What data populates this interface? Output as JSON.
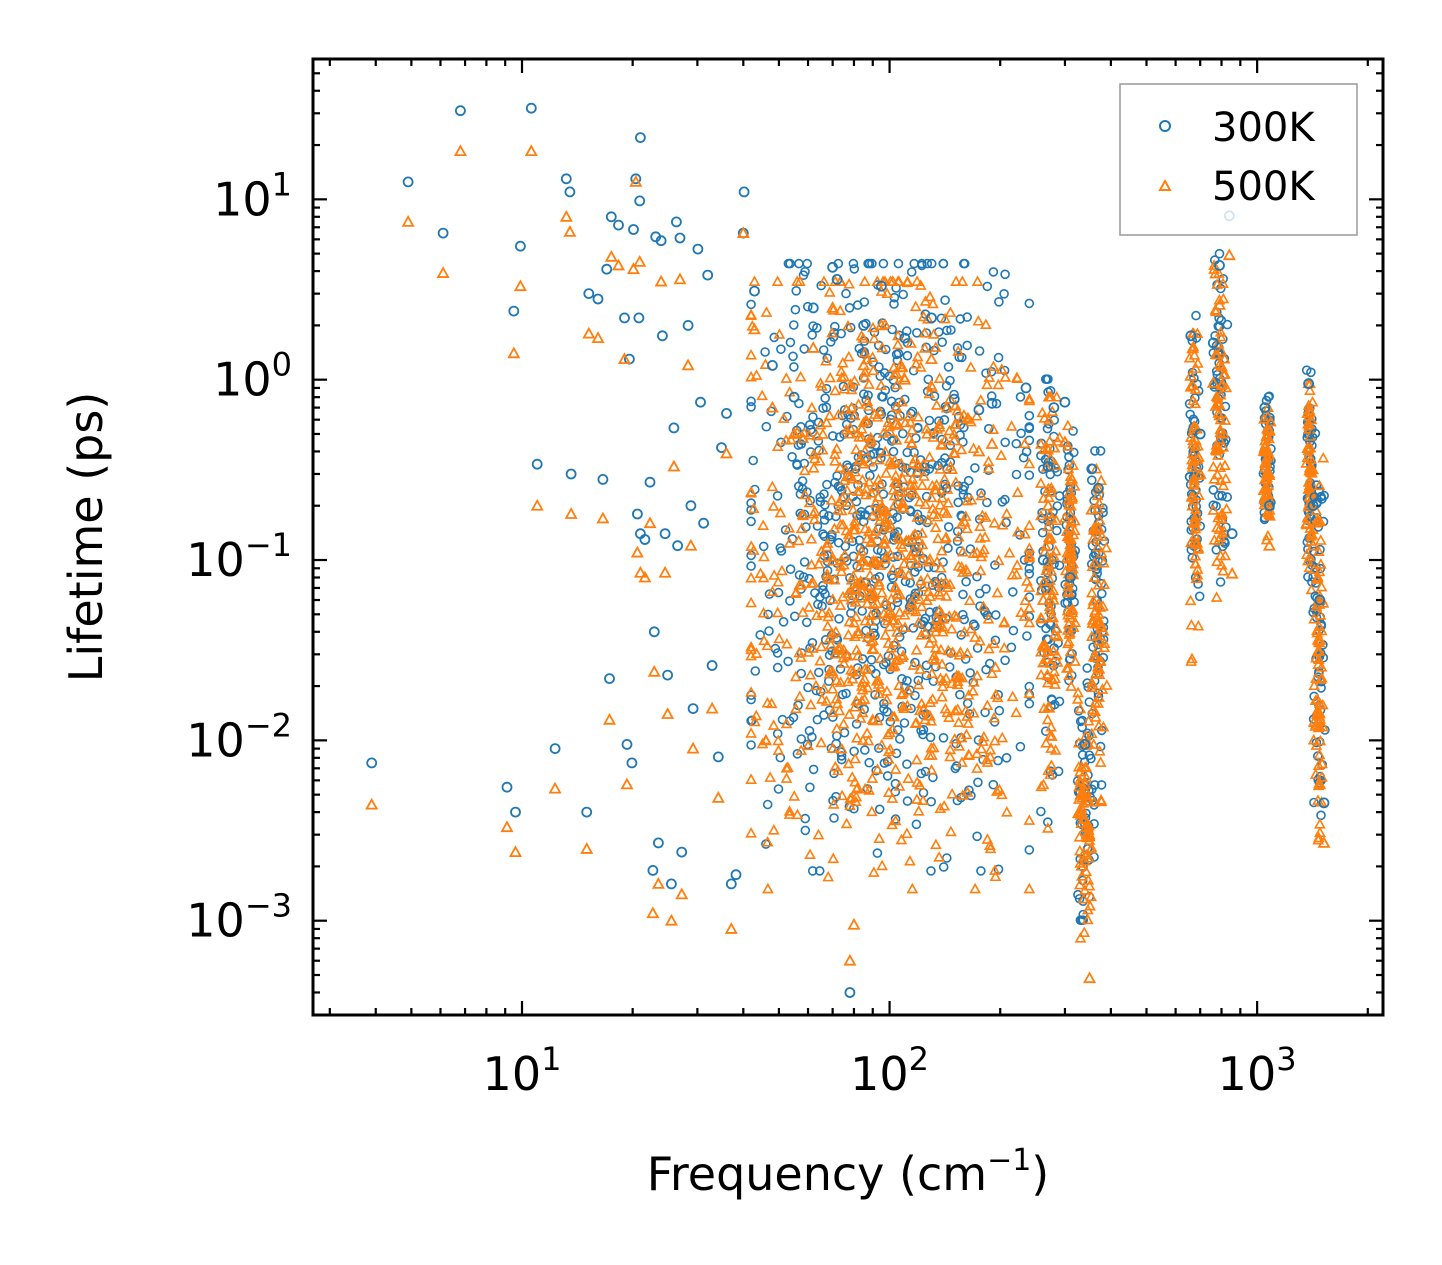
{
  "chart_data": {
    "type": "scatter",
    "title": "",
    "xlabel": "Frequency (cm",
    "xlabel_sup": "−1",
    "xlabel_close": ")",
    "ylabel": "Lifetime (ps)",
    "xscale": "log",
    "yscale": "log",
    "xlim": [
      2.7,
      2200
    ],
    "ylim": [
      0.0003,
      60
    ],
    "x_ticks": [
      {
        "value": 10,
        "base": "10",
        "exp": "1"
      },
      {
        "value": 100,
        "base": "10",
        "exp": "2"
      },
      {
        "value": 1000,
        "base": "10",
        "exp": "3"
      }
    ],
    "y_ticks": [
      {
        "value": 10,
        "base": "10",
        "exp": "1"
      },
      {
        "value": 1,
        "base": "10",
        "exp": "0"
      },
      {
        "value": 0.1,
        "base": "10",
        "exp": "−1"
      },
      {
        "value": 0.01,
        "base": "10",
        "exp": "−2"
      },
      {
        "value": 0.001,
        "base": "10",
        "exp": "−3"
      }
    ],
    "legend_position": "top-right",
    "series": [
      {
        "name": "300K",
        "marker": "circle",
        "color": "#1f77b4",
        "points": [
          [
            3.9,
            0.0075
          ],
          [
            4.9,
            12.5
          ],
          [
            6.1,
            6.5
          ],
          [
            6.8,
            31
          ],
          [
            9.1,
            0.0055
          ],
          [
            9.5,
            2.4
          ],
          [
            9.6,
            0.004
          ],
          [
            9.9,
            5.5
          ],
          [
            10.6,
            32
          ],
          [
            11,
            0.34
          ],
          [
            12.3,
            0.009
          ],
          [
            13.2,
            13
          ],
          [
            13.5,
            11
          ],
          [
            13.6,
            0.3
          ],
          [
            15,
            0.004
          ],
          [
            15.2,
            3
          ],
          [
            16.1,
            2.8
          ],
          [
            16.6,
            0.28
          ],
          [
            17,
            4.1
          ],
          [
            17.3,
            0.022
          ],
          [
            17.5,
            8
          ],
          [
            18.3,
            7.2
          ],
          [
            19,
            2.2
          ],
          [
            19.3,
            0.0095
          ],
          [
            19.6,
            1.3
          ],
          [
            19.9,
            0.0075
          ],
          [
            20.1,
            6.8
          ],
          [
            20.4,
            13
          ],
          [
            20.6,
            0.18
          ],
          [
            20.8,
            2.2
          ],
          [
            20.9,
            9.8
          ],
          [
            21,
            22
          ],
          [
            21,
            0.14
          ],
          [
            21.6,
            0.13
          ],
          [
            22.3,
            0.27
          ],
          [
            22.7,
            0.0019
          ],
          [
            22.9,
            0.04
          ],
          [
            23.1,
            6.2
          ],
          [
            23.5,
            0.0027
          ],
          [
            23.9,
            5.9
          ],
          [
            24.1,
            1.75
          ],
          [
            24.5,
            0.14
          ],
          [
            24.9,
            0.023
          ],
          [
            25.5,
            0.0016
          ],
          [
            25.9,
            0.54
          ],
          [
            26.3,
            7.5
          ],
          [
            26.5,
            0.12
          ],
          [
            26.9,
            6.1
          ],
          [
            27.2,
            0.0024
          ],
          [
            28.3,
            2
          ],
          [
            28.8,
            0.2
          ],
          [
            29.2,
            0.015
          ],
          [
            30.1,
            5.3
          ],
          [
            30.6,
            0.75
          ],
          [
            31.2,
            0.16
          ],
          [
            32,
            3.8
          ],
          [
            32.9,
            0.026
          ],
          [
            34.2,
            0.0081
          ],
          [
            34.9,
            0.42
          ],
          [
            36,
            0.65
          ],
          [
            37.1,
            0.0016
          ],
          [
            38.2,
            0.0018
          ],
          [
            40,
            6.5
          ],
          [
            40.2,
            11
          ],
          [
            42.9,
            3.1
          ],
          [
            48,
            1.2
          ],
          [
            55,
            0.8
          ],
          [
            62,
            2.5
          ],
          [
            70,
            4.2
          ],
          [
            72,
            3.6
          ],
          [
            78,
            0.0004
          ],
          [
            85,
            2
          ],
          [
            95,
            3.3
          ],
          [
            110,
            1.7
          ],
          [
            130,
            2.2
          ],
          [
            150,
            0.78
          ],
          [
            175,
            0.68
          ],
          [
            190,
            0.74
          ],
          [
            235,
            0.9
          ],
          [
            262,
            0.1
          ],
          [
            270,
            0.33
          ],
          [
            280,
            0.7
          ],
          [
            300,
            0.75
          ],
          [
            310,
            0.08
          ],
          [
            340,
            0.0095
          ],
          [
            355,
            0.32
          ],
          [
            370,
            0.25
          ],
          [
            660,
            1.75
          ],
          [
            700,
            0.5
          ],
          [
            760,
            1.6
          ],
          [
            790,
            4.3
          ],
          [
            840,
            8.1
          ],
          [
            855,
            0.14
          ],
          [
            1050,
            0.7
          ],
          [
            1080,
            0.2
          ],
          [
            1380,
            0.95
          ],
          [
            1420,
            0.2
          ],
          [
            1480,
            0.06
          ],
          [
            1520,
            0.0045
          ]
        ]
      },
      {
        "name": "500K",
        "marker": "triangle",
        "color": "#ff7f0e",
        "points": [
          [
            3.9,
            0.0044
          ],
          [
            4.9,
            7.5
          ],
          [
            6.1,
            3.9
          ],
          [
            6.8,
            18.5
          ],
          [
            9.1,
            0.0033
          ],
          [
            9.5,
            1.4
          ],
          [
            9.6,
            0.0024
          ],
          [
            9.9,
            3.3
          ],
          [
            10.6,
            18.5
          ],
          [
            11,
            0.2
          ],
          [
            12.3,
            0.0054
          ],
          [
            13.2,
            8
          ],
          [
            13.5,
            6.6
          ],
          [
            13.6,
            0.18
          ],
          [
            15,
            0.0025
          ],
          [
            15.2,
            1.8
          ],
          [
            16.1,
            1.7
          ],
          [
            16.6,
            0.17
          ],
          [
            17.3,
            0.013
          ],
          [
            17.5,
            4.8
          ],
          [
            18.3,
            4.3
          ],
          [
            19,
            1.3
          ],
          [
            19.3,
            0.0057
          ],
          [
            20.1,
            4.1
          ],
          [
            20.4,
            12.5
          ],
          [
            20.6,
            0.11
          ],
          [
            20.9,
            4.5
          ],
          [
            21,
            0.085
          ],
          [
            21.6,
            0.08
          ],
          [
            22.3,
            0.16
          ],
          [
            22.7,
            0.0011
          ],
          [
            22.9,
            0.024
          ],
          [
            23.5,
            0.0016
          ],
          [
            23.9,
            3.5
          ],
          [
            24.5,
            0.085
          ],
          [
            24.9,
            0.014
          ],
          [
            25.5,
            0.001
          ],
          [
            25.9,
            0.33
          ],
          [
            26.9,
            3.6
          ],
          [
            27.2,
            0.0014
          ],
          [
            28.3,
            1.2
          ],
          [
            28.8,
            0.12
          ],
          [
            29.2,
            0.009
          ],
          [
            32.9,
            0.015
          ],
          [
            34.2,
            0.0048
          ],
          [
            36,
            0.39
          ],
          [
            37.1,
            0.0009
          ],
          [
            40,
            6.5
          ],
          [
            42.9,
            1.9
          ],
          [
            48,
            0.7
          ],
          [
            55,
            0.5
          ],
          [
            62,
            1.5
          ],
          [
            70,
            2.5
          ],
          [
            78,
            0.0006
          ],
          [
            80,
            0.00095
          ],
          [
            85,
            1.2
          ],
          [
            95,
            2
          ],
          [
            110,
            1
          ],
          [
            130,
            1.3
          ],
          [
            150,
            0.46
          ],
          [
            175,
            0.4
          ],
          [
            190,
            0.44
          ],
          [
            262,
            0.06
          ],
          [
            270,
            0.2
          ],
          [
            280,
            0.42
          ],
          [
            300,
            0.45
          ],
          [
            310,
            0.048
          ],
          [
            340,
            0.0057
          ],
          [
            350,
            0.00048
          ],
          [
            355,
            0.19
          ],
          [
            370,
            0.15
          ],
          [
            660,
            1.05
          ],
          [
            700,
            0.3
          ],
          [
            760,
            0.96
          ],
          [
            790,
            2.6
          ],
          [
            840,
            4.9
          ],
          [
            855,
            0.084
          ],
          [
            1050,
            0.42
          ],
          [
            1080,
            0.12
          ],
          [
            1380,
            0.57
          ],
          [
            1420,
            0.12
          ],
          [
            1480,
            0.036
          ],
          [
            1520,
            0.0027
          ]
        ]
      }
    ],
    "clusters": [
      {
        "x": [
          42,
          240
        ],
        "y": [
          0.0015,
          3.5
        ],
        "center_x": 100,
        "center_y": 0.1
      },
      {
        "x": [
          258,
          290
        ],
        "y": [
          0.0022,
          0.8
        ],
        "center_x": 272,
        "center_y": 0.08
      },
      {
        "x": [
          300,
          320
        ],
        "y": [
          0.015,
          0.75
        ],
        "center_x": 310,
        "center_y": 0.1
      },
      {
        "x": [
          325,
          360
        ],
        "y": [
          0.0008,
          0.02
        ],
        "center_x": 340,
        "center_y": 0.004
      },
      {
        "x": [
          355,
          390
        ],
        "y": [
          0.0045,
          0.32
        ],
        "center_x": 370,
        "center_y": 0.05
      },
      {
        "x": [
          655,
          700
        ],
        "y": [
          0.025,
          1.8
        ],
        "center_x": 675,
        "center_y": 0.25
      },
      {
        "x": [
          760,
          830
        ],
        "y": [
          0.06,
          4.3
        ],
        "center_x": 790,
        "center_y": 0.6
      },
      {
        "x": [
          1040,
          1090
        ],
        "y": [
          0.12,
          0.7
        ],
        "center_x": 1065,
        "center_y": 0.3
      },
      {
        "x": [
          1360,
          1420
        ],
        "y": [
          0.06,
          0.95
        ],
        "center_x": 1390,
        "center_y": 0.3
      },
      {
        "x": [
          1420,
          1530
        ],
        "y": [
          0.0028,
          0.4
        ],
        "center_x": 1470,
        "center_y": 0.03
      }
    ]
  }
}
